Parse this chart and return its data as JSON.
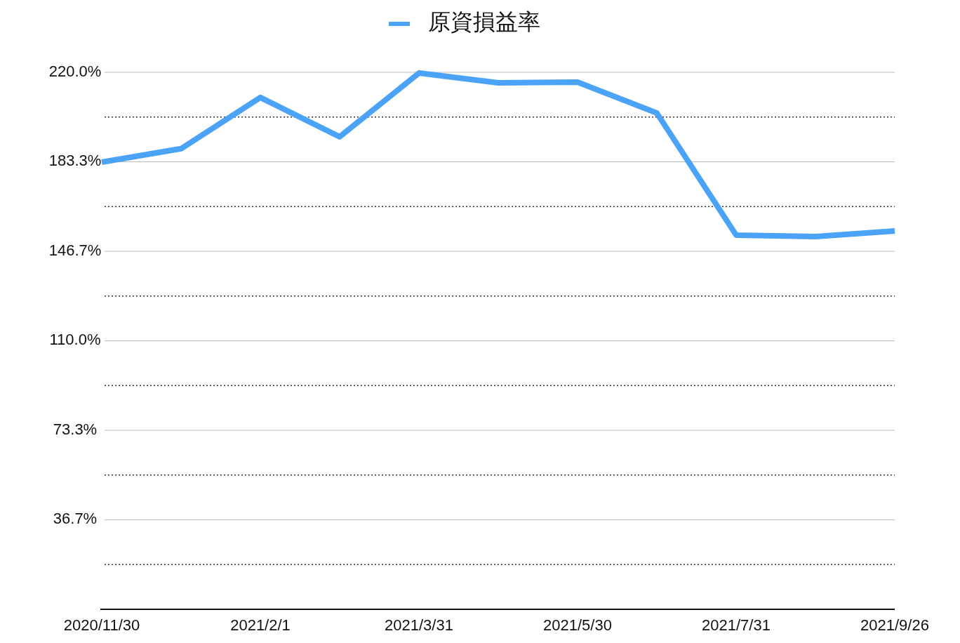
{
  "chart_data": {
    "type": "line",
    "categories": [
      "2020/11/30",
      null,
      "2021/2/1",
      null,
      "2021/3/31",
      null,
      "2021/5/30",
      null,
      "2021/7/31",
      null,
      "2021/9/26"
    ],
    "series": [
      {
        "name": "原資損益率",
        "color": "#4ba3f8",
        "values": [
          183.2,
          188.7,
          209.7,
          193.6,
          219.7,
          215.7,
          216.0,
          203.3,
          153.3,
          152.7,
          155.0
        ]
      }
    ],
    "ylim": [
      0,
      220
    ],
    "yticks": [
      {
        "value": 18.33,
        "label": null
      },
      {
        "value": 36.67,
        "label": "36.7%"
      },
      {
        "value": 55,
        "label": null
      },
      {
        "value": 73.33,
        "label": "73.3%"
      },
      {
        "value": 91.67,
        "label": null
      },
      {
        "value": 110,
        "label": "110.0%"
      },
      {
        "value": 128.33,
        "label": null
      },
      {
        "value": 146.67,
        "label": "146.7%"
      },
      {
        "value": 165,
        "label": null
      },
      {
        "value": 183.33,
        "label": "183.3%"
      },
      {
        "value": 201.67,
        "label": null
      },
      {
        "value": 220,
        "label": "220.0%"
      }
    ],
    "grid": "y",
    "legend": "top",
    "marker": "none",
    "line_style": "solid"
  }
}
